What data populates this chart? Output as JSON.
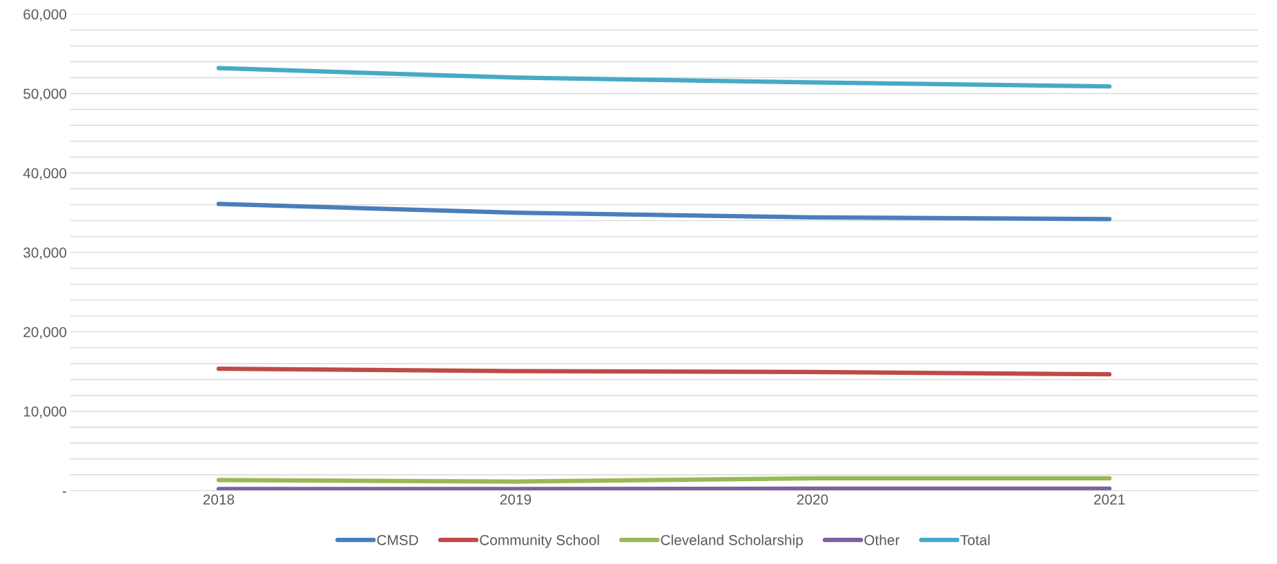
{
  "chart_data": {
    "type": "line",
    "categories": [
      "2018",
      "2019",
      "2020",
      "2021"
    ],
    "series": [
      {
        "name": "CMSD",
        "color": "#4a7ebb",
        "values": [
          36100,
          35000,
          34400,
          34200
        ]
      },
      {
        "name": "Community School",
        "color": "#be4b48",
        "values": [
          15350,
          15050,
          14950,
          14650
        ]
      },
      {
        "name": "Cleveland Scholarship",
        "color": "#98b954",
        "values": [
          1350,
          1150,
          1550,
          1550
        ]
      },
      {
        "name": "Other",
        "color": "#7d60a0",
        "values": [
          200,
          200,
          250,
          250
        ]
      },
      {
        "name": "Total",
        "color": "#46aac5",
        "values": [
          53200,
          52000,
          51400,
          50900
        ]
      }
    ],
    "ylim": [
      0,
      60000
    ],
    "yticks": [
      {
        "value": 0,
        "label": "-"
      },
      {
        "value": 2000,
        "label": null
      },
      {
        "value": 4000,
        "label": null
      },
      {
        "value": 6000,
        "label": null
      },
      {
        "value": 8000,
        "label": null
      },
      {
        "value": 10000,
        "label": "10,000"
      },
      {
        "value": 12000,
        "label": null
      },
      {
        "value": 14000,
        "label": null
      },
      {
        "value": 16000,
        "label": null
      },
      {
        "value": 18000,
        "label": null
      },
      {
        "value": 20000,
        "label": "20,000"
      },
      {
        "value": 22000,
        "label": null
      },
      {
        "value": 24000,
        "label": null
      },
      {
        "value": 26000,
        "label": null
      },
      {
        "value": 28000,
        "label": null
      },
      {
        "value": 30000,
        "label": "30,000"
      },
      {
        "value": 32000,
        "label": null
      },
      {
        "value": 34000,
        "label": null
      },
      {
        "value": 36000,
        "label": null
      },
      {
        "value": 38000,
        "label": null
      },
      {
        "value": 40000,
        "label": "40,000"
      },
      {
        "value": 42000,
        "label": null
      },
      {
        "value": 44000,
        "label": null
      },
      {
        "value": 46000,
        "label": null
      },
      {
        "value": 48000,
        "label": null
      },
      {
        "value": 50000,
        "label": "50,000"
      },
      {
        "value": 52000,
        "label": null
      },
      {
        "value": 54000,
        "label": null
      },
      {
        "value": 56000,
        "label": null
      },
      {
        "value": 58000,
        "label": null
      },
      {
        "value": 60000,
        "label": "60,000"
      }
    ],
    "grid": "y",
    "legend": "bottom",
    "marker": "none",
    "line_style": "solid"
  }
}
